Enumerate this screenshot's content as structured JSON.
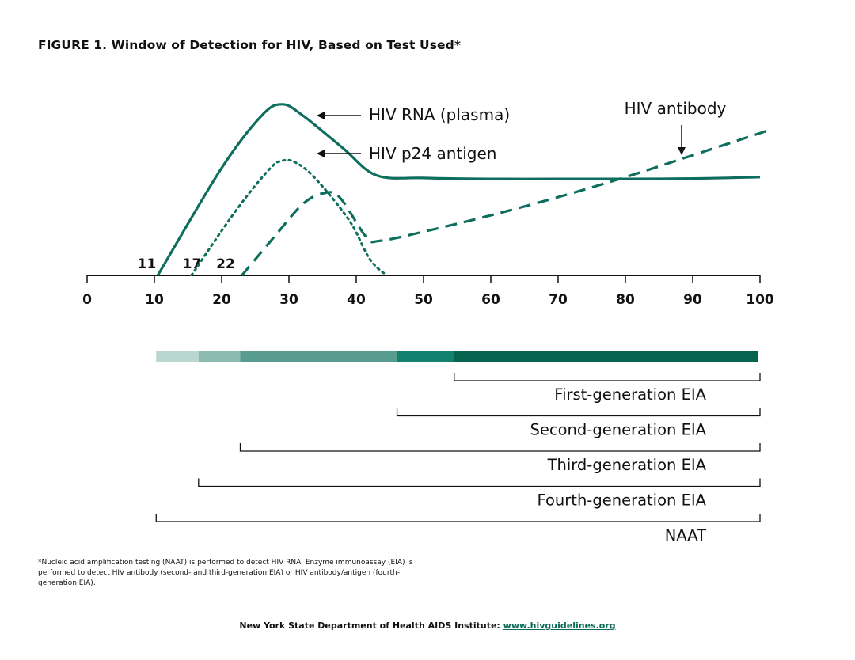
{
  "title": "FIGURE 1. Window of Detection for HIV, Based on Test Used*",
  "chart_data": {
    "type": "line",
    "title": "FIGURE 1. Window of Detection for HIV, Based on Test Used*",
    "x_range": [
      0,
      100
    ],
    "x_ticks": [
      0,
      10,
      20,
      30,
      40,
      50,
      60,
      70,
      80,
      90,
      100
    ],
    "onset_labels": [
      {
        "x": 11,
        "label": "11"
      },
      {
        "x": 17,
        "label": "17"
      },
      {
        "x": 22,
        "label": "22"
      }
    ],
    "series": [
      {
        "name": "HIV RNA (plasma)",
        "style": "solid",
        "points": [
          [
            10.5,
            0
          ],
          [
            20,
            59
          ],
          [
            26,
            88
          ],
          [
            29,
            94
          ],
          [
            32,
            88
          ],
          [
            38,
            70
          ],
          [
            43,
            55
          ],
          [
            50,
            53.5
          ],
          [
            60,
            53
          ],
          [
            70,
            53
          ],
          [
            80,
            53
          ],
          [
            90,
            53.2
          ],
          [
            100,
            54
          ]
        ]
      },
      {
        "name": "HIV p24 antigen",
        "style": "dotted",
        "points": [
          [
            15.5,
            0
          ],
          [
            22,
            35
          ],
          [
            27,
            58
          ],
          [
            29,
            63
          ],
          [
            31,
            62
          ],
          [
            34,
            53
          ],
          [
            39,
            30
          ],
          [
            42,
            9
          ],
          [
            44.5,
            0
          ]
        ]
      },
      {
        "name": "HIV antibody",
        "style": "dashed",
        "points": [
          [
            23,
            0
          ],
          [
            28,
            22
          ],
          [
            32,
            39
          ],
          [
            35,
            45
          ],
          [
            37.5,
            43
          ],
          [
            41.5,
            21
          ],
          [
            43.5,
            19
          ],
          [
            50,
            24
          ],
          [
            60,
            33
          ],
          [
            70,
            43
          ],
          [
            80,
            54
          ],
          [
            90,
            66
          ],
          [
            101.5,
            80
          ]
        ]
      }
    ],
    "annotations": [
      {
        "text": "HIV RNA (plasma)",
        "target": "HIV RNA (plasma)"
      },
      {
        "text": "HIV p24 antigen",
        "target": "HIV p24 antigen"
      },
      {
        "text": "HIV antibody",
        "target": "HIV antibody"
      }
    ],
    "detection_bar": {
      "segments": [
        {
          "from": 10.5,
          "to": 16.8,
          "color": "#b9d6d0"
        },
        {
          "from": 16.8,
          "to": 23,
          "color": "#8bbbb0"
        },
        {
          "from": 23,
          "to": 46.3,
          "color": "#589c8f"
        },
        {
          "from": 46.3,
          "to": 54.8,
          "color": "#12806d"
        },
        {
          "from": 54.8,
          "to": 100,
          "color": "#05634f"
        }
      ]
    },
    "tests": [
      {
        "label": "First-generation EIA",
        "start": 54.8,
        "end": 100
      },
      {
        "label": "Second-generation EIA",
        "start": 46.3,
        "end": 100
      },
      {
        "label": "Third-generation EIA",
        "start": 23,
        "end": 100
      },
      {
        "label": "Fourth-generation EIA",
        "start": 16.8,
        "end": 100
      },
      {
        "label": "NAAT",
        "start": 10.5,
        "end": 100
      }
    ],
    "colors": {
      "line": "#0e6e5d",
      "axis": "#111111"
    }
  },
  "footnote": "*Nucleic acid amplification testing (NAAT) is performed to detect HIV RNA. Enzyme immunoassay (EIA) is performed to detect HIV antibody (second- and third-generation EIA) or HIV antibody/antigen (fourth-generation EIA).",
  "source": {
    "label": "New York State Department of Health AIDS Institute:",
    "link_text": "www.hivguidelines.org"
  }
}
